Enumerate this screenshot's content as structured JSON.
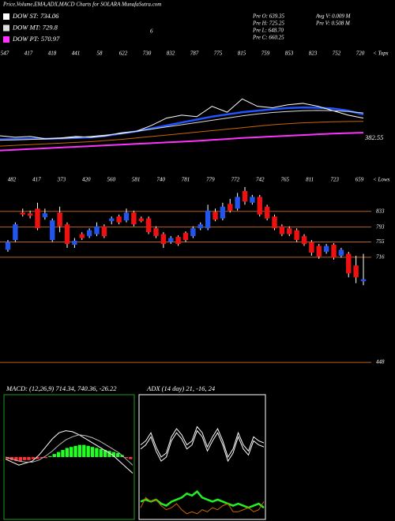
{
  "header": {
    "title": "Price,Volume,EMA,ADX,MACD Charts for SOLARA MunafaSutra.com",
    "info": [
      "Pre  O: 639.35",
      "Pre  H: 725.25",
      "Pre  L: 648.70",
      "Pre  C: 660.25"
    ],
    "stats": [
      "Avg V: 0.009 M",
      "Pre  V: 0.508 M"
    ],
    "marker": "6"
  },
  "chart_data": [
    {
      "type": "line",
      "side_label": "< Tops",
      "top_labels": [
        547,
        417,
        418,
        441,
        58,
        622,
        730,
        832,
        787,
        775,
        815,
        759,
        853,
        823,
        752,
        720
      ],
      "ylim": [
        250,
        1000
      ],
      "yticks": [
        382.55
      ],
      "series": [
        {
          "name": "DOW ST: 734.06",
          "color": "#ffffff",
          "values": [
            400,
            390,
            395,
            380,
            385,
            395,
            390,
            400,
            420,
            430,
            470,
            520,
            540,
            530,
            600,
            560,
            650,
            600,
            590,
            610,
            620,
            600,
            570,
            540,
            520
          ]
        },
        {
          "name": "DOW MT: 729.8",
          "color": "#dddddd",
          "values": [
            370,
            372,
            375,
            378,
            382,
            388,
            395,
            405,
            415,
            430,
            445,
            460,
            475,
            490,
            505,
            520,
            535,
            548,
            558,
            565,
            570,
            572,
            570,
            565,
            555
          ]
        },
        {
          "name": "DOW PT: 570.97",
          "color": "#ff33ff",
          "values": [
            300,
            305,
            310,
            315,
            320,
            325,
            330,
            335,
            340,
            345,
            350,
            355,
            360,
            365,
            372,
            378,
            385,
            390,
            395,
            400,
            405,
            410,
            415,
            418,
            421
          ]
        }
      ],
      "lines": [
        {
          "color": "#2255ff",
          "values": [
            375,
            378,
            380,
            380,
            382,
            385,
            390,
            400,
            415,
            430,
            450,
            470,
            490,
            510,
            530,
            545,
            560,
            570,
            580,
            588,
            592,
            590,
            585,
            570,
            545
          ]
        },
        {
          "color": "#cc6600",
          "values": [
            330,
            335,
            340,
            345,
            350,
            355,
            360,
            368,
            375,
            385,
            395,
            405,
            415,
            425,
            435,
            445,
            455,
            465,
            475,
            482,
            488,
            492,
            495,
            497,
            498
          ]
        }
      ]
    },
    {
      "type": "candlestick",
      "side_label": "< Lows",
      "up_color": "#2255ee",
      "down_color": "#ee1111",
      "level_color": "#b8601e",
      "top_labels": [
        482,
        417,
        373,
        420,
        560,
        581,
        740,
        781,
        779,
        772,
        742,
        765,
        811,
        723,
        659
      ],
      "ylim": [
        410,
        905
      ],
      "yticks": [
        833,
        793,
        755,
        716,
        448
      ],
      "open": [
        735,
        760,
        830,
        828,
        840,
        818,
        760,
        830,
        800,
        748,
        775,
        770,
        775,
        795,
        808,
        820,
        810,
        830,
        815,
        815,
        790,
        775,
        755,
        768,
        778,
        770,
        790,
        790,
        832,
        815,
        852,
        840,
        885,
        855,
        870,
        845,
        820,
        795,
        790,
        785,
        770,
        755,
        745,
        730,
        748,
        720,
        725,
        695,
        655
      ],
      "high": [
        760,
        805,
        840,
        835,
        855,
        840,
        815,
        845,
        805,
        765,
        780,
        790,
        805,
        800,
        820,
        825,
        840,
        835,
        820,
        820,
        795,
        780,
        770,
        772,
        782,
        795,
        805,
        850,
        840,
        855,
        865,
        880,
        895,
        875,
        875,
        850,
        825,
        800,
        795,
        790,
        775,
        760,
        750,
        750,
        752,
        740,
        730,
        720,
        725
      ],
      "low": [
        730,
        755,
        820,
        815,
        785,
        812,
        755,
        780,
        740,
        740,
        760,
        765,
        770,
        765,
        800,
        800,
        805,
        795,
        805,
        775,
        765,
        740,
        750,
        745,
        755,
        765,
        785,
        785,
        808,
        810,
        830,
        835,
        850,
        850,
        820,
        810,
        785,
        770,
        770,
        755,
        745,
        720,
        712,
        725,
        710,
        715,
        665,
        650,
        645
      ],
      "close": [
        755,
        800,
        825,
        822,
        790,
        828,
        810,
        795,
        750,
        758,
        765,
        785,
        795,
        770,
        815,
        805,
        830,
        800,
        808,
        780,
        770,
        750,
        765,
        750,
        760,
        790,
        800,
        835,
        812,
        845,
        835,
        870,
        858,
        870,
        825,
        815,
        790,
        775,
        775,
        760,
        750,
        728,
        718,
        745,
        715,
        735,
        675,
        665,
        660
      ]
    },
    {
      "type": "macd",
      "title": "MACD: (12,26,9) 714.34, 740.36, -26.22",
      "ylim": [
        -60,
        60
      ],
      "series": [
        {
          "color": "#ffffff",
          "values": [
            -2,
            -5,
            -8,
            -6,
            -4,
            2,
            10,
            18,
            24,
            26,
            25,
            22,
            18,
            14,
            10,
            6,
            2,
            -4,
            -10,
            -16
          ]
        },
        {
          "color": "#bbbbbb",
          "values": [
            0,
            -2,
            -4,
            -5,
            -5,
            -3,
            1,
            6,
            12,
            17,
            20,
            22,
            21,
            19,
            16,
            12,
            8,
            4,
            -2,
            -8
          ]
        }
      ],
      "histogram": [
        -2,
        -3,
        -4,
        -4,
        -3,
        -3,
        -2,
        -2,
        -1,
        -1,
        1,
        3,
        5,
        7,
        9,
        10,
        11,
        12,
        12,
        11,
        10,
        9,
        8,
        7,
        6,
        5,
        4,
        2,
        -1,
        -2
      ],
      "pos_color": "#22ff22",
      "neg_color": "#ff3333"
    },
    {
      "type": "adx",
      "title": "ADX (14 day) 21, -16, 24",
      "ylim": [
        0,
        60
      ],
      "series": [
        {
          "color": "#ffffff",
          "values": [
            36,
            38,
            42,
            35,
            30,
            32,
            40,
            44,
            41,
            36,
            38,
            45,
            42,
            35,
            40,
            44,
            38,
            30,
            34,
            42,
            36,
            33,
            40,
            38,
            37
          ]
        },
        {
          "color": "#ffffff",
          "values": [
            34,
            36,
            40,
            33,
            28,
            30,
            38,
            42,
            39,
            34,
            36,
            43,
            40,
            33,
            38,
            42,
            36,
            28,
            32,
            40,
            34,
            31,
            38,
            36,
            35
          ]
        },
        {
          "color": "#22ee22",
          "values": [
            8,
            9,
            8,
            9,
            7,
            6,
            8,
            9,
            10,
            12,
            11,
            13,
            10,
            9,
            8,
            9,
            8,
            7,
            6,
            7,
            6,
            5,
            6,
            7,
            5
          ]
        },
        {
          "color": "#cc6600",
          "values": [
            5,
            10,
            8,
            9,
            6,
            4,
            5,
            7,
            4,
            2,
            3,
            2,
            4,
            3,
            5,
            4,
            6,
            7,
            3,
            3,
            4,
            5,
            3,
            4,
            8
          ]
        }
      ]
    }
  ]
}
